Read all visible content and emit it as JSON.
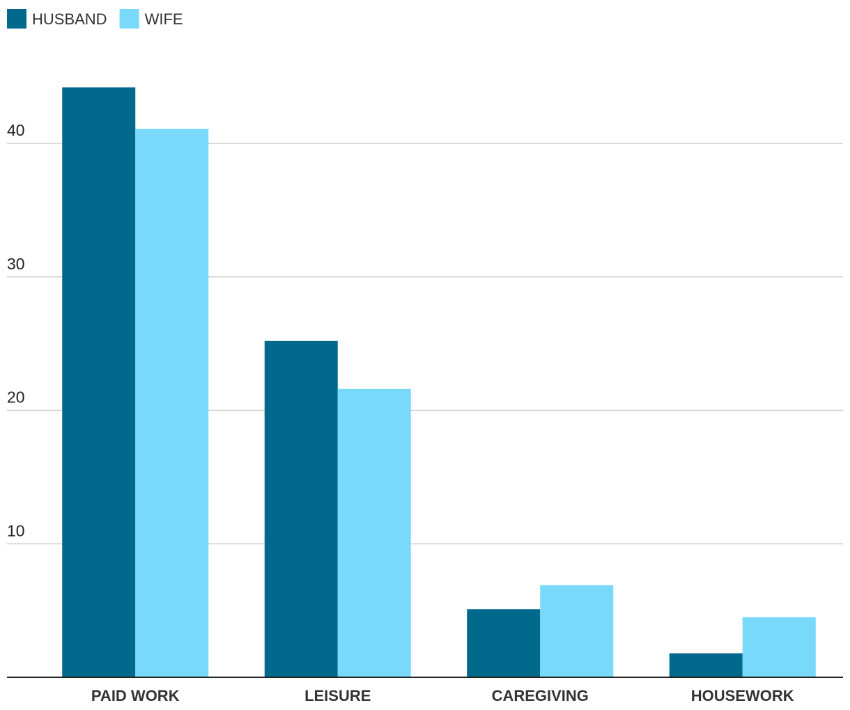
{
  "chart_data": {
    "type": "bar",
    "categories": [
      "PAID WORK",
      "LEISURE",
      "CAREGIVING",
      "HOUSEWORK"
    ],
    "series": [
      {
        "name": "HUSBAND",
        "color": "#00698c",
        "values": [
          44.2,
          25.2,
          5.1,
          1.8
        ]
      },
      {
        "name": "WIFE",
        "color": "#78d9fa",
        "values": [
          41.1,
          21.6,
          6.9,
          4.5
        ]
      }
    ],
    "ylim": [
      0,
      46
    ],
    "yticks": [
      10,
      20,
      30,
      40
    ],
    "grid": true
  }
}
